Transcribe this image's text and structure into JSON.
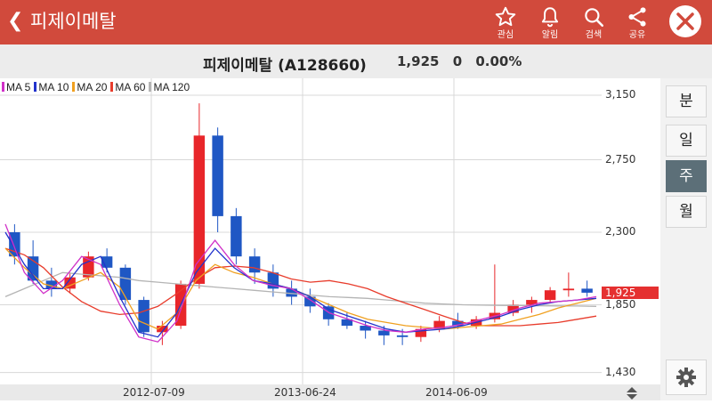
{
  "header": {
    "back_icon": "chevron-left-icon",
    "title": "피제이메탈",
    "buttons": [
      {
        "icon": "star-icon",
        "label": "관심"
      },
      {
        "icon": "bell-icon",
        "label": "알림"
      },
      {
        "icon": "search-icon",
        "label": "검색"
      },
      {
        "icon": "share-icon",
        "label": "공유"
      }
    ],
    "close_icon": "close-icon",
    "color": "#d14a3c"
  },
  "stock": {
    "name": "피제이메탈 (A128660)",
    "price": "1,925",
    "change": "0",
    "change_pct": "0.00%"
  },
  "periods": [
    {
      "label": "분",
      "active": false
    },
    {
      "label": "일",
      "active": false
    },
    {
      "label": "주",
      "active": true
    },
    {
      "label": "월",
      "active": false
    }
  ],
  "settings_icon": "gear-icon",
  "scroll_icon": "updown-arrows-icon",
  "chart_data": {
    "type": "candlestick",
    "legend": [
      {
        "name": "MA 5",
        "color": "#d030c8"
      },
      {
        "name": "MA 10",
        "color": "#2233cc"
      },
      {
        "name": "MA 20",
        "color": "#f0a020"
      },
      {
        "name": "MA 60",
        "color": "#e83c2c"
      },
      {
        "name": "MA 120",
        "color": "#b4b4b4"
      }
    ],
    "y_ticks": [
      "3,150",
      "2,750",
      "2,300",
      "1,850",
      "1,430"
    ],
    "y_tick_values": [
      3150,
      2750,
      2300,
      1850,
      1430
    ],
    "ylim": [
      1400,
      3200
    ],
    "x_ticks": [
      "2012-07-09",
      "2013-06-24",
      "2014-06-09"
    ],
    "current_price_label": "1,925",
    "current_price": 1925,
    "up_color": "#e8262a",
    "down_color": "#1f57c4",
    "grid": true,
    "ma_series": [
      {
        "name": "MA 120",
        "color": "#b4b4b4",
        "values": [
          1900,
          1950,
          2000,
          2050,
          2040,
          2030,
          2020,
          2000,
          1990,
          1980,
          1970,
          1960,
          1950,
          1940,
          1930,
          1920,
          1910,
          1900,
          1895,
          1890,
          1880,
          1870,
          1860,
          1855,
          1850,
          1848,
          1846,
          1845,
          1844,
          1843,
          1842,
          1840
        ]
      },
      {
        "name": "MA 60",
        "color": "#e83c2c",
        "values": [
          2200,
          2160,
          2080,
          1960,
          1870,
          1810,
          1790,
          1800,
          1840,
          1920,
          2010,
          2080,
          2090,
          2080,
          2050,
          2010,
          1990,
          2000,
          1980,
          1950,
          1900,
          1860,
          1820,
          1780,
          1740,
          1720,
          1720,
          1720,
          1730,
          1740,
          1760,
          1780
        ]
      },
      {
        "name": "MA 20",
        "color": "#f0a020",
        "values": [
          2200,
          2080,
          1980,
          1950,
          2000,
          2050,
          1960,
          1750,
          1700,
          1800,
          2000,
          2100,
          2050,
          2020,
          1980,
          1950,
          1900,
          1850,
          1800,
          1760,
          1740,
          1720,
          1710,
          1700,
          1710,
          1720,
          1730,
          1760,
          1790,
          1830,
          1860,
          1890
        ]
      },
      {
        "name": "MA 10",
        "color": "#2233cc",
        "values": [
          2300,
          2100,
          1950,
          1950,
          2100,
          2150,
          1900,
          1680,
          1650,
          1800,
          2050,
          2200,
          2080,
          2000,
          1980,
          1950,
          1900,
          1820,
          1780,
          1740,
          1700,
          1680,
          1690,
          1700,
          1720,
          1750,
          1780,
          1820,
          1850,
          1870,
          1880,
          1890
        ]
      },
      {
        "name": "MA 5",
        "color": "#d030c8",
        "values": [
          2350,
          2050,
          1920,
          2000,
          2150,
          2100,
          1850,
          1650,
          1620,
          1750,
          2100,
          2250,
          2100,
          2000,
          1970,
          1950,
          1880,
          1800,
          1760,
          1720,
          1690,
          1680,
          1700,
          1710,
          1730,
          1760,
          1790,
          1830,
          1860,
          1870,
          1880,
          1900
        ]
      }
    ],
    "candles": [
      [
        2300,
        2350,
        2100,
        2150
      ],
      [
        2150,
        2250,
        1980,
        2000
      ],
      [
        2000,
        2080,
        1900,
        1950
      ],
      [
        1950,
        2050,
        1920,
        2020
      ],
      [
        2020,
        2180,
        2000,
        2150
      ],
      [
        2150,
        2200,
        2050,
        2080
      ],
      [
        2080,
        2100,
        1850,
        1880
      ],
      [
        1880,
        1900,
        1650,
        1680
      ],
      [
        1680,
        1750,
        1600,
        1720
      ],
      [
        1720,
        2000,
        1700,
        1980
      ],
      [
        1980,
        3100,
        1950,
        2900
      ],
      [
        2900,
        2950,
        2300,
        2400
      ],
      [
        2400,
        2450,
        2100,
        2150
      ],
      [
        2150,
        2200,
        1980,
        2050
      ],
      [
        2050,
        2100,
        1900,
        1950
      ],
      [
        1950,
        2000,
        1850,
        1900
      ],
      [
        1900,
        1950,
        1800,
        1840
      ],
      [
        1840,
        1860,
        1720,
        1760
      ],
      [
        1760,
        1800,
        1700,
        1720
      ],
      [
        1720,
        1750,
        1640,
        1690
      ],
      [
        1690,
        1720,
        1600,
        1660
      ],
      [
        1660,
        1700,
        1600,
        1650
      ],
      [
        1650,
        1720,
        1620,
        1700
      ],
      [
        1700,
        1780,
        1680,
        1750
      ],
      [
        1750,
        1800,
        1700,
        1720
      ],
      [
        1720,
        1780,
        1700,
        1760
      ],
      [
        1760,
        2100,
        1740,
        1800
      ],
      [
        1800,
        1880,
        1780,
        1850
      ],
      [
        1850,
        1900,
        1800,
        1880
      ],
      [
        1880,
        1960,
        1860,
        1940
      ],
      [
        1940,
        2050,
        1900,
        1950
      ],
      [
        1950,
        2000,
        1900,
        1925
      ]
    ]
  }
}
